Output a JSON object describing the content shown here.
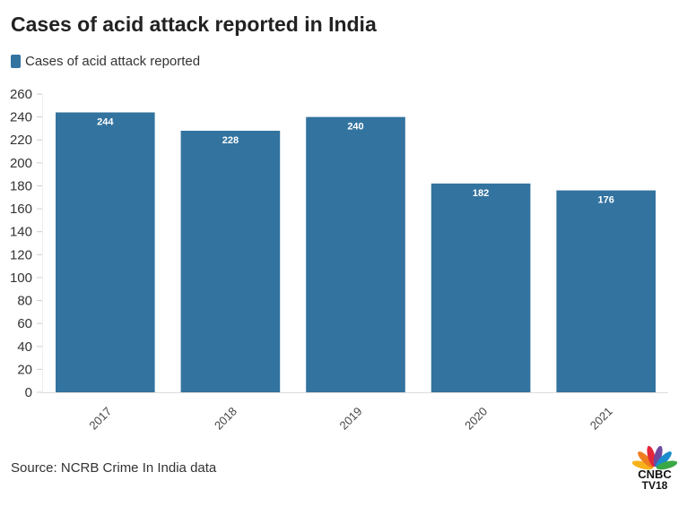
{
  "chart_data": {
    "type": "bar",
    "title": "Cases of acid attack reported in India",
    "categories": [
      "2017",
      "2018",
      "2019",
      "2020",
      "2021"
    ],
    "series": [
      {
        "name": "Cases of acid attack reported",
        "values": [
          244,
          228,
          240,
          182,
          176
        ]
      }
    ],
    "ylim": [
      0,
      260
    ],
    "yticks": [
      0,
      20,
      40,
      60,
      80,
      100,
      120,
      140,
      160,
      180,
      200,
      220,
      240,
      260
    ],
    "xlabel": "",
    "ylabel": "",
    "bar_color": "#33739f",
    "legend_position": "top-left",
    "grid": false
  },
  "source": "Source: NCRB Crime In India data",
  "logo": {
    "line1": "CNBC",
    "line2": "TV18"
  }
}
